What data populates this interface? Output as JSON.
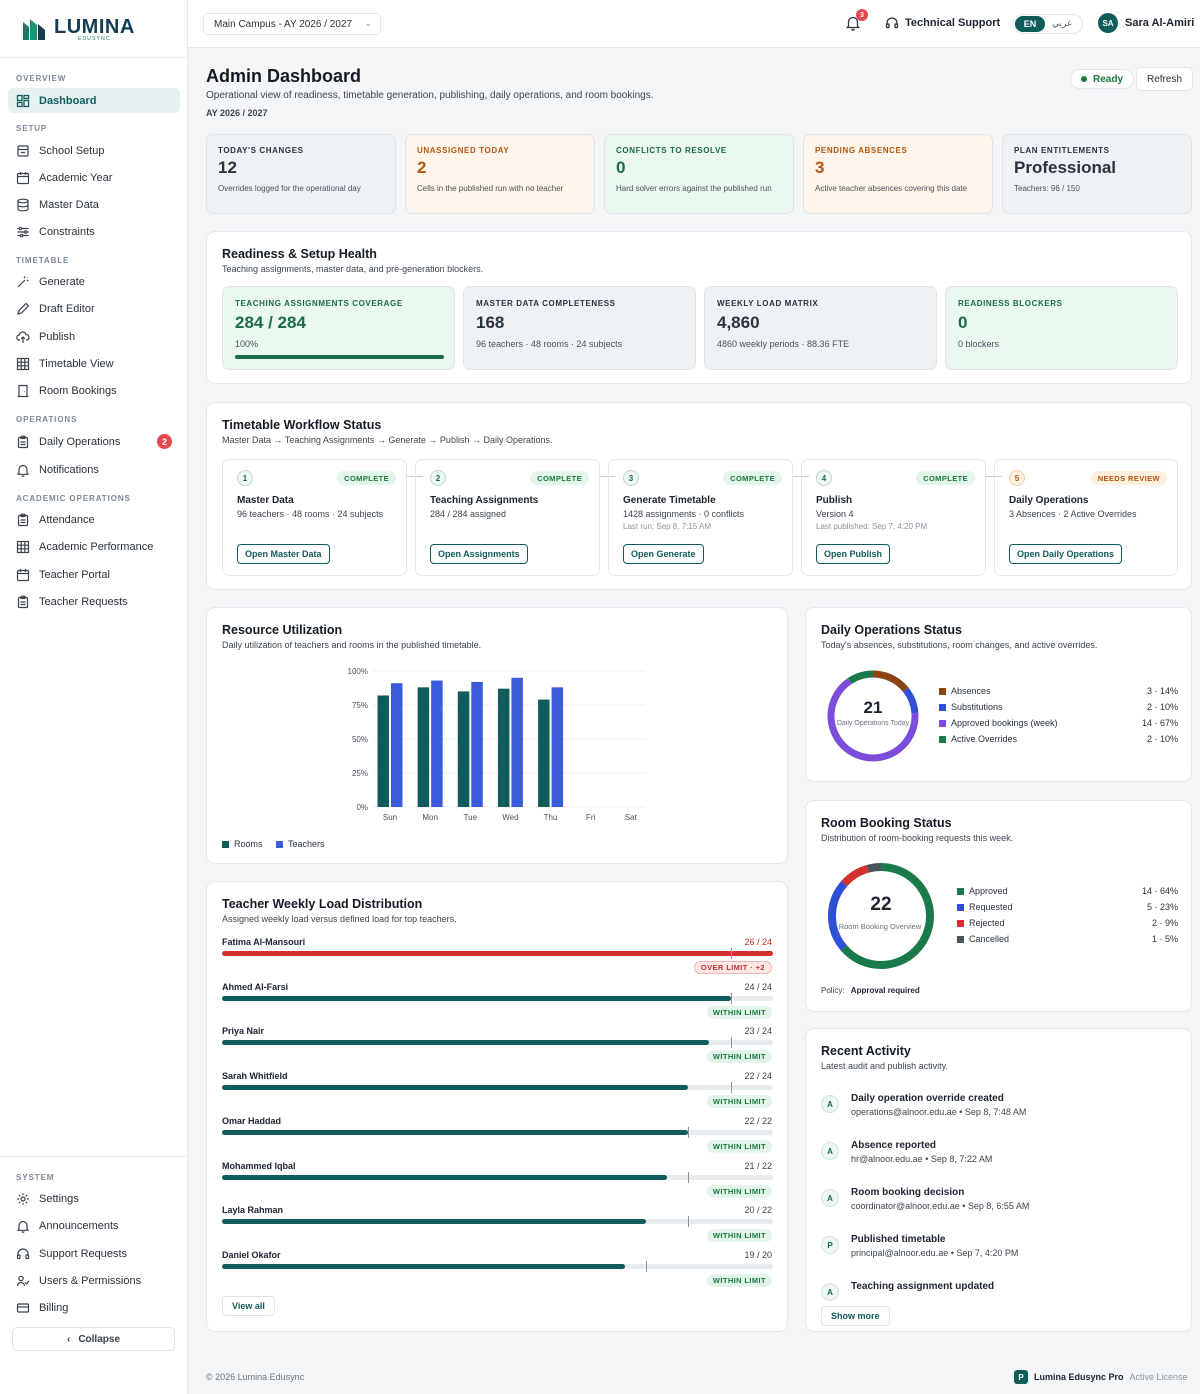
{
  "brand": {
    "name": "LUMINA",
    "sub": "EDUSYNC"
  },
  "topbar": {
    "campus": "Main Campus - AY 2026 / 2027",
    "notification_count": "3",
    "support_label": "Technical Support",
    "lang_en": "EN",
    "lang_ar": "عربي",
    "user_initials": "SA",
    "user_name": "Sara Al-Amiri"
  },
  "sidebar": {
    "sections": [
      {
        "label": "OVERVIEW",
        "items": [
          {
            "label": "Dashboard",
            "icon": "dashboard-icon",
            "active": true
          }
        ]
      },
      {
        "label": "SETUP",
        "items": [
          {
            "label": "School Setup",
            "icon": "school-icon"
          },
          {
            "label": "Academic Year",
            "icon": "calendar-icon"
          },
          {
            "label": "Master Data",
            "icon": "database-icon"
          },
          {
            "label": "Constraints",
            "icon": "sliders-icon"
          }
        ]
      },
      {
        "label": "TIMETABLE",
        "items": [
          {
            "label": "Generate",
            "icon": "wand-icon"
          },
          {
            "label": "Draft Editor",
            "icon": "pencil-icon"
          },
          {
            "label": "Publish",
            "icon": "cloud-upload-icon"
          },
          {
            "label": "Timetable View",
            "icon": "grid-icon"
          },
          {
            "label": "Room Bookings",
            "icon": "door-icon"
          }
        ]
      },
      {
        "label": "OPERATIONS",
        "items": [
          {
            "label": "Daily Operations",
            "icon": "clipboard-icon",
            "badge": "2"
          },
          {
            "label": "Notifications",
            "icon": "bell-icon"
          }
        ]
      },
      {
        "label": "ACADEMIC OPERATIONS",
        "items": [
          {
            "label": "Attendance",
            "icon": "clipboard-check-icon"
          },
          {
            "label": "Academic Performance",
            "icon": "table-icon"
          },
          {
            "label": "Teacher Portal",
            "icon": "calendar-icon"
          },
          {
            "label": "Teacher Requests",
            "icon": "clipboard-list-icon"
          }
        ]
      }
    ],
    "system": {
      "label": "SYSTEM",
      "items": [
        {
          "label": "Settings",
          "icon": "gear-icon"
        },
        {
          "label": "Announcements",
          "icon": "bell-icon"
        },
        {
          "label": "Support Requests",
          "icon": "headset-icon"
        },
        {
          "label": "Users & Permissions",
          "icon": "users-icon"
        },
        {
          "label": "Billing",
          "icon": "credit-card-icon"
        }
      ]
    },
    "collapse_label": "Collapse"
  },
  "page": {
    "title": "Admin Dashboard",
    "subtitle": "Operational view of readiness, timetable generation, publishing, daily operations, and room bookings.",
    "ay": "AY 2026 / 2027",
    "status": "Ready",
    "refresh": "Refresh"
  },
  "kpis": [
    {
      "label": "TODAY'S CHANGES",
      "value": "12",
      "desc": "Overrides logged for the operational day",
      "bg": "#eef1f5",
      "color": "#2a323c"
    },
    {
      "label": "UNASSIGNED TODAY",
      "value": "2",
      "desc": "Cells in the published run with no teacher",
      "bg": "#fff5ea",
      "color": "#b4560f"
    },
    {
      "label": "CONFLICTS TO RESOLVE",
      "value": "0",
      "desc": "Hard solver errors against the published run",
      "bg": "#eaf8f0",
      "color": "#1a6b4a"
    },
    {
      "label": "PENDING ABSENCES",
      "value": "3",
      "desc": "Active teacher absences covering this date",
      "bg": "#fff5ea",
      "color": "#b4560f"
    },
    {
      "label": "PLAN ENTITLEMENTS",
      "value": "Professional",
      "desc": "Teachers: 96 / 150",
      "bg": "#eef1f5",
      "color": "#2a323c"
    }
  ],
  "readiness": {
    "title": "Readiness & Setup Health",
    "subtitle": "Teaching assignments, master data, and pre-generation blockers.",
    "cards": [
      {
        "label": "TEACHING ASSIGNMENTS COVERAGE",
        "value": "284 / 284",
        "desc": "100%",
        "progress": 1.0,
        "bg": "#eaf8f0",
        "color": "#1a6b4a"
      },
      {
        "label": "MASTER DATA COMPLETENESS",
        "value": "168",
        "desc": "96 teachers · 48 rooms · 24 subjects",
        "bg": "#eef1f5",
        "color": "#2a323c"
      },
      {
        "label": "WEEKLY LOAD MATRIX",
        "value": "4,860",
        "desc": "4860 weekly periods · 88.36 FTE",
        "bg": "#eef1f5",
        "color": "#2a323c"
      },
      {
        "label": "READINESS BLOCKERS",
        "value": "0",
        "desc": "0 blockers",
        "bg": "#eaf8f0",
        "color": "#1a6b4a"
      }
    ]
  },
  "workflow": {
    "title": "Timetable Workflow Status",
    "subtitle": "Master Data → Teaching Assignments → Generate → Publish → Daily Operations.",
    "steps": [
      {
        "num": "1",
        "status": "COMPLETE",
        "name": "Master Data",
        "d1": "96 teachers · 48 rooms · 24 subjects",
        "d2": "",
        "button": "Open Master Data"
      },
      {
        "num": "2",
        "status": "COMPLETE",
        "name": "Teaching Assignments",
        "d1": "284 / 284 assigned",
        "d2": "",
        "button": "Open Assignments"
      },
      {
        "num": "3",
        "status": "COMPLETE",
        "name": "Generate Timetable",
        "d1": "1428 assignments · 0 conflicts",
        "d2": "Last run: Sep 8, 7:15 AM",
        "button": "Open Generate"
      },
      {
        "num": "4",
        "status": "COMPLETE",
        "name": "Publish",
        "d1": "Version 4",
        "d2": "Last published: Sep 7, 4:20 PM",
        "button": "Open Publish"
      },
      {
        "num": "5",
        "status": "NEEDS REVIEW",
        "name": "Daily Operations",
        "d1": "3 Absences · 2 Active Overrides",
        "d2": "",
        "button": "Open Daily Operations"
      }
    ]
  },
  "resource": {
    "title": "Resource Utilization",
    "subtitle": "Daily utilization of teachers and rooms in the published timetable."
  },
  "chart_data": {
    "type": "bar",
    "categories": [
      "Sun",
      "Mon",
      "Tue",
      "Wed",
      "Thu",
      "Fri",
      "Sat"
    ],
    "series": [
      {
        "name": "Rooms",
        "values": [
          82,
          88,
          85,
          87,
          79,
          0,
          0
        ],
        "color": "#0f5c5a"
      },
      {
        "name": "Teachers",
        "values": [
          91,
          93,
          92,
          95,
          88,
          0,
          0
        ],
        "color": "#3b5bdb"
      }
    ],
    "ylim": [
      0,
      100
    ],
    "yticks": [
      "0%",
      "25%",
      "50%",
      "75%",
      "100%"
    ],
    "legend": "bottom-left"
  },
  "daily_ops": {
    "title": "Daily Operations Status",
    "subtitle": "Today's absences, substitutions, room changes, and active overrides.",
    "total": "21",
    "center_label": "Daily Operations Today",
    "items": [
      {
        "label": "Absences",
        "value": "3 · 14%",
        "count": 3,
        "color": "#8b4513"
      },
      {
        "label": "Substitutions",
        "value": "2 · 10%",
        "count": 2,
        "color": "#2f4fd6"
      },
      {
        "label": "Approved bookings (week)",
        "value": "14 · 67%",
        "count": 14,
        "color": "#7c4ddb"
      },
      {
        "label": "Active Overrides",
        "value": "2 · 10%",
        "count": 2,
        "color": "#1a7a4a"
      }
    ]
  },
  "room_booking": {
    "title": "Room Booking Status",
    "subtitle": "Distribution of room-booking requests this week.",
    "total": "22",
    "center_label": "Room Booking Overview",
    "items": [
      {
        "label": "Approved",
        "value": "14 · 64%",
        "count": 14,
        "color": "#1a7a4a"
      },
      {
        "label": "Requested",
        "value": "5 · 23%",
        "count": 5,
        "color": "#2f4fd6"
      },
      {
        "label": "Rejected",
        "value": "2 · 9%",
        "count": 2,
        "color": "#d33030"
      },
      {
        "label": "Cancelled",
        "value": "1 · 5%",
        "count": 1,
        "color": "#4a525c"
      }
    ],
    "policy_label": "Policy:",
    "policy_value": "Approval required"
  },
  "load": {
    "title": "Teacher Weekly Load Distribution",
    "subtitle": "Assigned weekly load versus defined load for top teachers.",
    "teachers": [
      {
        "name": "Fatima Al-Mansouri",
        "value": "26 / 24",
        "assigned": 26,
        "limit": 24,
        "badge": "OVER LIMIT · +2",
        "over": true
      },
      {
        "name": "Ahmed Al-Farsi",
        "value": "24 / 24",
        "assigned": 24,
        "limit": 24,
        "badge": "WITHIN LIMIT",
        "over": false
      },
      {
        "name": "Priya Nair",
        "value": "23 / 24",
        "assigned": 23,
        "limit": 24,
        "badge": "WITHIN LIMIT",
        "over": false
      },
      {
        "name": "Sarah Whitfield",
        "value": "22 / 24",
        "assigned": 22,
        "limit": 24,
        "badge": "WITHIN LIMIT",
        "over": false
      },
      {
        "name": "Omar Haddad",
        "value": "22 / 22",
        "assigned": 22,
        "limit": 22,
        "badge": "WITHIN LIMIT",
        "over": false
      },
      {
        "name": "Mohammed Iqbal",
        "value": "21 / 22",
        "assigned": 21,
        "limit": 22,
        "badge": "WITHIN LIMIT",
        "over": false
      },
      {
        "name": "Layla Rahman",
        "value": "20 / 22",
        "assigned": 20,
        "limit": 22,
        "badge": "WITHIN LIMIT",
        "over": false
      },
      {
        "name": "Daniel Okafor",
        "value": "19 / 20",
        "assigned": 19,
        "limit": 20,
        "badge": "WITHIN LIMIT",
        "over": false
      }
    ],
    "view_all": "View all"
  },
  "activity": {
    "title": "Recent Activity",
    "subtitle": "Latest audit and publish activity.",
    "items": [
      {
        "icon": "A",
        "title": "Daily operation override created",
        "sub": "operations@alnoor.edu.ae • Sep 8, 7:48 AM"
      },
      {
        "icon": "A",
        "title": "Absence reported",
        "sub": "hr@alnoor.edu.ae • Sep 8, 7:22 AM"
      },
      {
        "icon": "A",
        "title": "Room booking decision",
        "sub": "coordinator@alnoor.edu.ae • Sep 8, 6:55 AM"
      },
      {
        "icon": "P",
        "title": "Published timetable",
        "sub": "principal@alnoor.edu.ae • Sep 7, 4:20 PM"
      },
      {
        "icon": "A",
        "title": "Teaching assignment updated",
        "sub": ""
      }
    ],
    "show_more": "Show more"
  },
  "footer": {
    "copyright": "© 2026 Lumina Edusync",
    "badge": "P",
    "product": "Lumina Edusync Pro",
    "license": "Active License"
  }
}
